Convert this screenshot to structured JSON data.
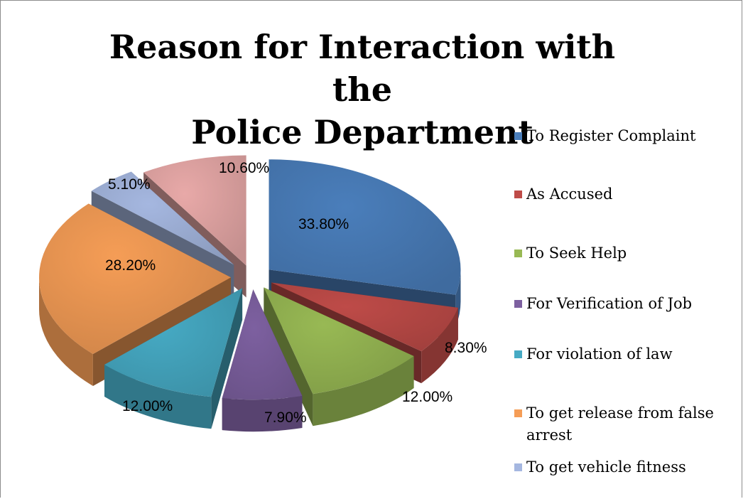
{
  "chart_data": {
    "type": "pie",
    "title_lines": [
      "Reason for Interaction with the",
      "Police Department"
    ],
    "slices": [
      {
        "label": "To Register Complaint",
        "value": 33.8,
        "value_label": "33.80%",
        "color": "#4a7ebb"
      },
      {
        "label": "As Accused",
        "value": 8.3,
        "value_label": "8.30%",
        "color": "#be4b48"
      },
      {
        "label": "To Seek Help",
        "value": 12.0,
        "value_label": "12.00%",
        "color": "#98b954"
      },
      {
        "label": "For Verification of Job",
        "value": 7.9,
        "value_label": "7.90%",
        "color": "#7d60a0"
      },
      {
        "label": "For violation of law",
        "value": 12.0,
        "value_label": "12.00%",
        "color": "#46aac4"
      },
      {
        "label": "To get release from false arrest",
        "value": 28.2,
        "value_label": "28.20%",
        "color": "#f59d56"
      },
      {
        "label": "To get vehicle fitness",
        "value": 5.1,
        "value_label": "5.10%",
        "color": "#a5b7e0"
      },
      {
        "label": "",
        "value": 10.6,
        "value_label": "10.60%",
        "color": "#e8a9a8"
      }
    ],
    "legend_entries": [
      {
        "label": "To Register Complaint",
        "color": "#4a7ebb"
      },
      {
        "label": "As Accused",
        "color": "#be4b48"
      },
      {
        "label": "To Seek Help",
        "color": "#98b954"
      },
      {
        "label": "For Verification of Job",
        "color": "#7d60a0"
      },
      {
        "label": "For violation of law",
        "color": "#46aac4"
      },
      {
        "label": "To get release from false arrest",
        "color": "#f59d56"
      },
      {
        "label": "To get vehicle fitness",
        "color": "#a5b7e0"
      }
    ],
    "legend_position": "right",
    "exploded": true,
    "style": "3d"
  }
}
